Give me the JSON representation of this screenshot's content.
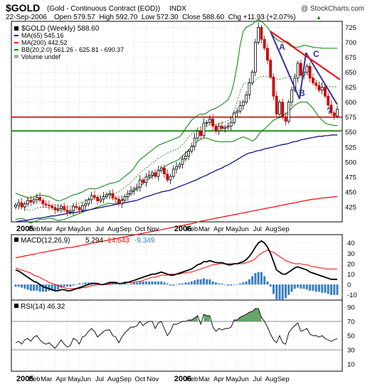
{
  "header": {
    "symbol": "$GOLD",
    "description": "(Gold - Continuous Contract (EOD))",
    "exchange": "INDX",
    "watermark": "@ StockCharts.com",
    "date": "22-Sep-2006",
    "quote": "Open 579.57  High 592.70  Low 572.30  Close 588.60  Chg +11.93 (+2.07%)",
    "quote_arrow": "▲"
  },
  "legend": {
    "main": "$GOLD (Weekly) 588.60",
    "ma65": "MA(65) 545.16",
    "ma200": "MA(200) 442.52",
    "bb": "BB(20,2.0) 561.26 - 625.81 - 690.37",
    "volume": "Volume undef"
  },
  "annotations": {
    "a": "A",
    "b": "B",
    "c": "C",
    "q": "?"
  },
  "macd_labels": {
    "name": "MACD(12,26,9)",
    "macd": "5.294",
    "signal": "14.643",
    "hist": "-9.349"
  },
  "rsi_label": "RSI(14) 46.32",
  "x_labels": [
    "2005",
    "Feb",
    "Mar",
    "Apr",
    "May",
    "Jun",
    "Jul",
    "Aug",
    "Sep",
    "Oct",
    "Nov",
    "2006",
    "Feb",
    "Mar",
    "Apr",
    "May",
    "Jun",
    "Jul",
    "Aug",
    "Sep"
  ],
  "colors": {
    "up": "#000000",
    "down": "#cc0000",
    "ma65": "#000080",
    "ma200": "#ff0000",
    "bb": "#008000",
    "macd_hist": "#3a7fc1",
    "support1": "#cc0000",
    "support2": "#008000",
    "trend": "#ff0000",
    "abc": "#333399"
  },
  "chart_data": {
    "type": "candlestick",
    "price_axis": {
      "ticks": [
        425,
        450,
        475,
        500,
        525,
        550,
        575,
        600,
        625,
        650,
        675,
        700,
        725
      ],
      "range": [
        400,
        735
      ]
    },
    "support_levels": [
      575,
      552
    ],
    "weekly_close": [
      428,
      432,
      425,
      430,
      436,
      433,
      437,
      441,
      436,
      430,
      428,
      427,
      424,
      420,
      422,
      426,
      420,
      416,
      418,
      426,
      424,
      420,
      427,
      430,
      437,
      444,
      441,
      435,
      438,
      442,
      445,
      447,
      440,
      438,
      430,
      436,
      442,
      447,
      452,
      455,
      458,
      470,
      466,
      475,
      478,
      482,
      476,
      486,
      490,
      480,
      470,
      476,
      488,
      492,
      496,
      505,
      510,
      518,
      526,
      540,
      552,
      544,
      565,
      566,
      572,
      560,
      552,
      560,
      556,
      558,
      560,
      566,
      582,
      585,
      594,
      600,
      612,
      632,
      650,
      700,
      725,
      705,
      690,
      670,
      642,
      610,
      580,
      600,
      575,
      568,
      600,
      620,
      640,
      665,
      645,
      650,
      660,
      640,
      632,
      628,
      620,
      625,
      610,
      595,
      582,
      577,
      588
    ],
    "ma65": [
      400,
      401,
      402,
      402,
      403,
      404,
      405,
      406,
      406,
      407,
      408,
      409,
      410,
      410,
      411,
      412,
      413,
      414,
      415,
      415,
      416,
      417,
      418,
      419,
      420,
      421,
      422,
      423,
      424,
      425,
      426,
      427,
      428,
      429,
      430,
      431,
      432,
      433,
      434,
      435,
      436,
      438,
      440,
      442,
      443,
      445,
      447,
      448,
      450,
      451,
      452,
      453,
      455,
      457,
      459,
      461,
      463,
      465,
      467,
      469,
      471,
      474,
      476,
      478,
      481,
      483,
      486,
      488,
      490,
      493,
      495,
      498,
      501,
      504,
      507,
      510,
      513,
      515,
      516,
      518,
      519,
      520,
      522,
      523,
      524,
      525,
      527,
      528,
      529,
      530,
      531,
      533,
      534,
      535,
      537,
      538,
      539,
      540,
      541,
      542,
      543,
      543,
      544,
      544,
      545,
      545,
      545
    ],
    "ma200": [
      340,
      341,
      342,
      343,
      344,
      345,
      346,
      347,
      348,
      349,
      350,
      351,
      352,
      353,
      354,
      355,
      356,
      357,
      357,
      358,
      359,
      360,
      361,
      362,
      363,
      364,
      365,
      366,
      367,
      368,
      369,
      370,
      371,
      372,
      373,
      374,
      375,
      376,
      377,
      378,
      379,
      380,
      381,
      382,
      383,
      384,
      385,
      386,
      387,
      388,
      389,
      390,
      391,
      392,
      393,
      394,
      395,
      396,
      397,
      398,
      400,
      401,
      402,
      403,
      404,
      405,
      406,
      407,
      408,
      409,
      410,
      411,
      412,
      413,
      414,
      415,
      416,
      417,
      418,
      419,
      420,
      421,
      422,
      423,
      424,
      425,
      426,
      427,
      428,
      429,
      430,
      431,
      432,
      433,
      434,
      435,
      436,
      437,
      438,
      438,
      439,
      440,
      440,
      441,
      441,
      442,
      442
    ],
    "bb_upper": [
      448,
      446,
      444,
      442,
      440,
      440,
      442,
      444,
      445,
      444,
      443,
      442,
      440,
      437,
      435,
      436,
      438,
      440,
      443,
      445,
      446,
      448,
      450,
      453,
      455,
      456,
      455,
      456,
      458,
      460,
      462,
      464,
      465,
      466,
      468,
      472,
      476,
      480,
      484,
      490,
      498,
      504,
      508,
      512,
      516,
      520,
      524,
      528,
      530,
      532,
      534,
      536,
      538,
      540,
      542,
      548,
      556,
      563,
      570,
      574,
      578,
      580,
      580,
      582,
      586,
      588,
      590,
      593,
      596,
      600,
      604,
      615,
      634,
      662,
      695,
      718,
      725,
      728,
      730,
      735,
      738,
      735,
      730,
      725,
      718,
      710,
      705,
      702,
      700,
      702,
      700,
      695,
      692,
      692,
      693,
      695,
      694,
      693,
      692,
      691,
      691,
      690,
      690,
      690,
      690,
      690,
      690
    ],
    "bb_lower": [
      404,
      405,
      406,
      404,
      400,
      398,
      400,
      402,
      404,
      404,
      405,
      406,
      406,
      404,
      402,
      403,
      404,
      406,
      408,
      410,
      412,
      414,
      416,
      418,
      420,
      421,
      423,
      425,
      427,
      428,
      430,
      431,
      430,
      431,
      432,
      436,
      440,
      444,
      448,
      452,
      456,
      460,
      464,
      468,
      472,
      476,
      480,
      484,
      488,
      492,
      495,
      498,
      500,
      502,
      505,
      510,
      515,
      520,
      524,
      530,
      535,
      538,
      540,
      540,
      538,
      536,
      535,
      534,
      534,
      534,
      534,
      534,
      535,
      538,
      540,
      542,
      540,
      538,
      535,
      538,
      545,
      552,
      555,
      560,
      565,
      570,
      572,
      575,
      578,
      580,
      585,
      590,
      595,
      598,
      600,
      600,
      600,
      595,
      590,
      582,
      575,
      570,
      565,
      563,
      562,
      561,
      561
    ],
    "macd": [
      14,
      13,
      11,
      9,
      7,
      5,
      3,
      2,
      0,
      -2,
      -3,
      -4,
      -5,
      -6,
      -6,
      -5,
      -5,
      -6,
      -6,
      -5,
      -4,
      -3,
      -2,
      -1,
      0,
      1,
      1,
      1,
      0,
      0,
      1,
      2,
      2,
      2,
      1,
      1,
      2,
      2,
      3,
      4,
      5,
      6,
      7,
      8,
      9,
      10,
      10,
      11,
      12,
      11,
      10,
      9,
      9,
      10,
      11,
      12,
      13,
      14,
      15,
      17,
      19,
      20,
      22,
      22,
      23,
      22,
      21,
      21,
      21,
      20,
      19,
      19,
      20,
      20,
      21,
      22,
      24,
      27,
      31,
      36,
      40,
      42,
      40,
      36,
      30,
      22,
      14,
      12,
      10,
      10,
      12,
      14,
      16,
      17,
      16,
      15,
      14,
      12,
      11,
      10,
      9,
      8,
      7,
      6,
      5,
      5,
      5
    ],
    "macd_signal": [
      16,
      15,
      14,
      13,
      12,
      11,
      9,
      8,
      7,
      5,
      4,
      2,
      1,
      0,
      -1,
      -2,
      -3,
      -4,
      -4,
      -4,
      -4,
      -4,
      -3,
      -3,
      -2,
      -1,
      -1,
      0,
      0,
      0,
      0,
      0,
      1,
      1,
      1,
      1,
      1,
      2,
      2,
      2,
      3,
      3,
      4,
      5,
      6,
      7,
      7,
      8,
      9,
      9,
      9,
      10,
      10,
      10,
      10,
      11,
      11,
      12,
      12,
      13,
      14,
      15,
      16,
      17,
      18,
      19,
      19,
      20,
      20,
      20,
      20,
      20,
      20,
      20,
      20,
      20,
      21,
      22,
      23,
      25,
      28,
      30,
      32,
      33,
      32,
      31,
      29,
      27,
      25,
      23,
      22,
      21,
      20,
      20,
      20,
      19,
      19,
      18,
      17,
      17,
      16,
      16,
      15,
      15,
      15,
      15,
      15
    ],
    "macd_axis": {
      "ticks": [
        -10,
        0,
        10,
        20,
        30,
        40
      ],
      "range": [
        -15,
        48
      ]
    },
    "rsi": [
      40,
      42,
      38,
      44,
      46,
      42,
      48,
      50,
      44,
      40,
      38,
      40,
      36,
      32,
      38,
      44,
      38,
      34,
      36,
      46,
      44,
      38,
      48,
      50,
      56,
      60,
      56,
      48,
      52,
      56,
      58,
      58,
      50,
      48,
      40,
      48,
      54,
      58,
      62,
      62,
      64,
      70,
      64,
      68,
      70,
      70,
      60,
      68,
      70,
      60,
      50,
      56,
      66,
      66,
      68,
      70,
      70,
      72,
      72,
      75,
      78,
      66,
      80,
      78,
      78,
      62,
      56,
      60,
      58,
      60,
      60,
      62,
      72,
      72,
      76,
      78,
      80,
      83,
      84,
      88,
      88,
      76,
      70,
      62,
      52,
      44,
      40,
      50,
      40,
      38,
      54,
      60,
      64,
      68,
      56,
      58,
      60,
      52,
      50,
      50,
      48,
      50,
      46,
      44,
      42,
      44,
      46
    ],
    "rsi_axis": {
      "ticks": [
        10,
        30,
        50,
        70,
        90
      ],
      "range": [
        0,
        100
      ]
    }
  }
}
